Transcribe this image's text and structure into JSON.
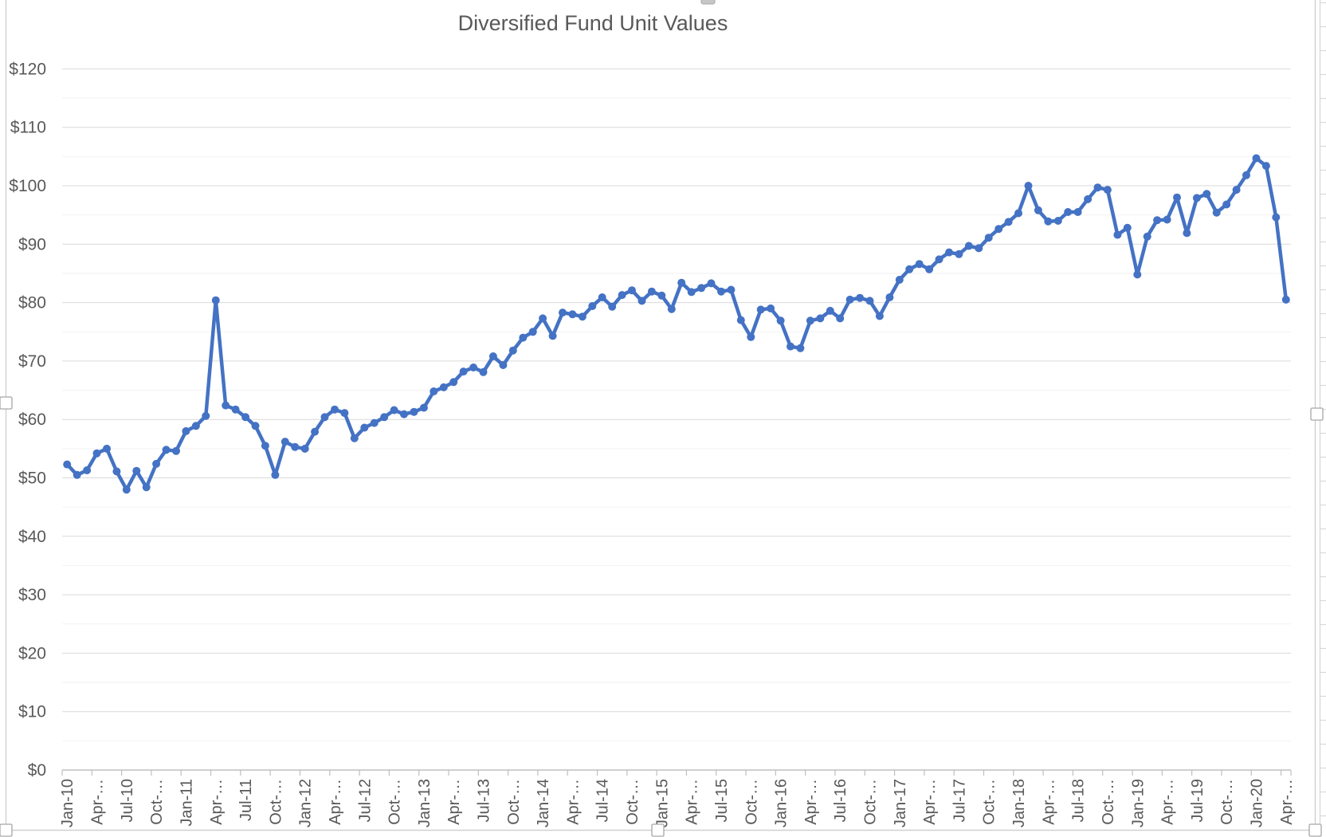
{
  "chart_data": {
    "type": "line",
    "title": "Diversified Fund Unit Values",
    "xlabel": "",
    "ylabel": "",
    "ylim": [
      0,
      120
    ],
    "y_major_step": 10,
    "y_minor_step": 5,
    "grid": "horizontal-major-and-minor",
    "legend_position": "none",
    "x_tick_labels": [
      "Jan-10",
      "Apr-…",
      "Jul-10",
      "Oct-…",
      "Jan-11",
      "Apr-…",
      "Jul-11",
      "Oct-…",
      "Jan-12",
      "Apr-…",
      "Jul-12",
      "Oct-…",
      "Jan-13",
      "Apr-…",
      "Jul-13",
      "Oct-…",
      "Jan-14",
      "Apr-…",
      "Jul-14",
      "Oct-…",
      "Jan-15",
      "Apr-…",
      "Jul-15",
      "Oct-…",
      "Jan-16",
      "Apr-…",
      "Jul-16",
      "Oct-…",
      "Jan-17",
      "Apr-…",
      "Jul-17",
      "Oct-…",
      "Jan-18",
      "Apr-…",
      "Jul-18",
      "Oct-…",
      "Jan-19",
      "Apr-…",
      "Jul-19",
      "Oct-…",
      "Jan-20",
      "Apr-…"
    ],
    "y_tick_labels": [
      "$0",
      "$10",
      "$20",
      "$30",
      "$40",
      "$50",
      "$60",
      "$70",
      "$80",
      "$90",
      "$100",
      "$110",
      "$120"
    ],
    "x": [
      "Jan-10",
      "Feb-10",
      "Mar-10",
      "Apr-10",
      "May-10",
      "Jun-10",
      "Jul-10",
      "Aug-10",
      "Sep-10",
      "Oct-10",
      "Nov-10",
      "Dec-10",
      "Jan-11",
      "Feb-11",
      "Mar-11",
      "Apr-11",
      "May-11",
      "Jun-11",
      "Jul-11",
      "Aug-11",
      "Sep-11",
      "Oct-11",
      "Nov-11",
      "Dec-11",
      "Jan-12",
      "Feb-12",
      "Mar-12",
      "Apr-12",
      "May-12",
      "Jun-12",
      "Jul-12",
      "Aug-12",
      "Sep-12",
      "Oct-12",
      "Nov-12",
      "Dec-12",
      "Jan-13",
      "Feb-13",
      "Mar-13",
      "Apr-13",
      "May-13",
      "Jun-13",
      "Jul-13",
      "Aug-13",
      "Sep-13",
      "Oct-13",
      "Nov-13",
      "Dec-13",
      "Jan-14",
      "Feb-14",
      "Mar-14",
      "Apr-14",
      "May-14",
      "Jun-14",
      "Jul-14",
      "Aug-14",
      "Sep-14",
      "Oct-14",
      "Nov-14",
      "Dec-14",
      "Jan-15",
      "Feb-15",
      "Mar-15",
      "Apr-15",
      "May-15",
      "Jun-15",
      "Jul-15",
      "Aug-15",
      "Sep-15",
      "Oct-15",
      "Nov-15",
      "Dec-15",
      "Jan-16",
      "Feb-16",
      "Mar-16",
      "Apr-16",
      "May-16",
      "Jun-16",
      "Jul-16",
      "Aug-16",
      "Sep-16",
      "Oct-16",
      "Nov-16",
      "Dec-16",
      "Jan-17",
      "Feb-17",
      "Mar-17",
      "Apr-17",
      "May-17",
      "Jun-17",
      "Jul-17",
      "Aug-17",
      "Sep-17",
      "Oct-17",
      "Nov-17",
      "Dec-17",
      "Jan-18",
      "Feb-18",
      "Mar-18",
      "Apr-18",
      "May-18",
      "Jun-18",
      "Jul-18",
      "Aug-18",
      "Sep-18",
      "Oct-18",
      "Nov-18",
      "Dec-18",
      "Jan-19",
      "Feb-19",
      "Mar-19",
      "Apr-19",
      "May-19",
      "Jun-19",
      "Jul-19",
      "Aug-19",
      "Sep-19",
      "Oct-19",
      "Nov-19",
      "Dec-19",
      "Jan-20",
      "Feb-20",
      "Mar-20",
      "Apr-20"
    ],
    "series": [
      {
        "name": "Diversified Fund Unit Value",
        "color": "#4472C4",
        "values": [
          52.3,
          50.5,
          51.3,
          54.2,
          55.0,
          51.1,
          48.0,
          51.2,
          48.4,
          52.4,
          54.8,
          54.6,
          58.0,
          58.9,
          60.6,
          80.4,
          62.4,
          61.7,
          60.4,
          58.9,
          55.5,
          50.5,
          56.2,
          55.3,
          55.0,
          57.9,
          60.4,
          61.7,
          61.1,
          56.8,
          58.6,
          59.4,
          60.4,
          61.6,
          60.9,
          61.3,
          62.0,
          64.8,
          65.5,
          66.4,
          68.2,
          68.9,
          68.1,
          70.8,
          69.3,
          71.8,
          74.0,
          75.0,
          77.3,
          74.3,
          78.3,
          78.0,
          77.6,
          79.4,
          80.9,
          79.3,
          81.3,
          82.1,
          80.3,
          81.9,
          81.2,
          78.9,
          83.4,
          81.8,
          82.5,
          83.3,
          81.9,
          82.2,
          77.0,
          74.1,
          78.8,
          79.0,
          76.9,
          72.5,
          72.2,
          76.9,
          77.3,
          78.6,
          77.3,
          80.5,
          80.8,
          80.3,
          77.7,
          80.9,
          83.9,
          85.7,
          86.6,
          85.7,
          87.4,
          88.6,
          88.3,
          89.7,
          89.3,
          91.1,
          92.6,
          93.8,
          95.3,
          100.0,
          95.8,
          93.9,
          94.0,
          95.5,
          95.5,
          97.7,
          99.7,
          99.3,
          91.6,
          92.8,
          84.8,
          91.3,
          94.1,
          94.2,
          98.0,
          91.9,
          97.9,
          98.6,
          95.4,
          96.8,
          99.3,
          101.8,
          104.7,
          103.4,
          94.6,
          80.5
        ]
      }
    ],
    "colors": {
      "series_line": "#4472C4",
      "axis_text": "#595959",
      "gridline_major": "#D9D9D9",
      "gridline_minor": "#F2F2F2",
      "axis_line": "#BFBFBF",
      "chart_border": "#D0D0D0",
      "handle_border": "#A6A6A6"
    }
  }
}
